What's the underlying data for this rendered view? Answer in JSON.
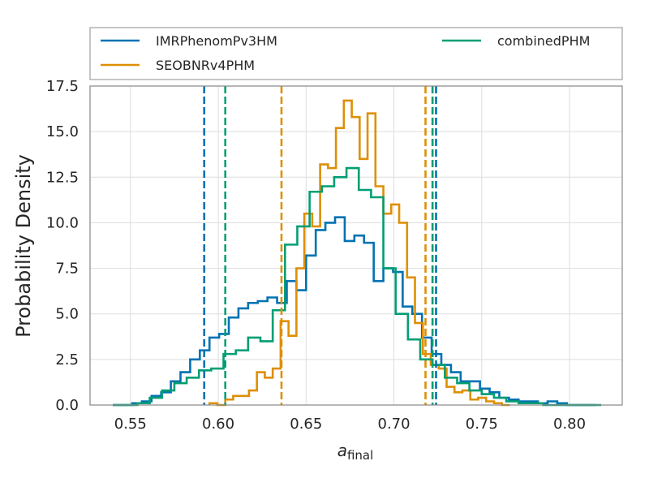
{
  "chart_data": {
    "type": "histogram",
    "xlabel": "a",
    "xlabel_subscript": "final",
    "ylabel": "Probability Density",
    "xlim": [
      0.527,
      0.83
    ],
    "ylim": [
      0,
      17.5
    ],
    "xticks": [
      0.55,
      0.6,
      0.65,
      0.7,
      0.75,
      0.8
    ],
    "xtick_labels": [
      "0.55",
      "0.60",
      "0.65",
      "0.70",
      "0.75",
      "0.80"
    ],
    "yticks": [
      0.0,
      2.5,
      5.0,
      7.5,
      10.0,
      12.5,
      15.0,
      17.5
    ],
    "ytick_labels": [
      "0.0",
      "2.5",
      "5.0",
      "7.5",
      "10.0",
      "12.5",
      "15.0",
      "17.5"
    ],
    "grid": true,
    "legend_position": "top, above plot",
    "series": [
      {
        "name": "IMRPhenomPv3HM",
        "color": "#0072b2",
        "bin_edges": [
          0.54,
          0.5455,
          0.551,
          0.5565,
          0.562,
          0.5675,
          0.573,
          0.5785,
          0.584,
          0.5895,
          0.595,
          0.6005,
          0.606,
          0.6115,
          0.617,
          0.6225,
          0.628,
          0.6335,
          0.639,
          0.6445,
          0.65,
          0.6555,
          0.661,
          0.6665,
          0.672,
          0.6775,
          0.683,
          0.6885,
          0.694,
          0.6995,
          0.705,
          0.7105,
          0.716,
          0.7215,
          0.727,
          0.7325,
          0.738,
          0.7435,
          0.749,
          0.7545,
          0.76,
          0.7655,
          0.771,
          0.7765,
          0.782,
          0.7875,
          0.793,
          0.7985,
          0.804,
          0.8095,
          0.815
        ],
        "values": [
          0.0,
          0.0,
          0.1,
          0.2,
          0.5,
          0.7,
          1.3,
          1.8,
          2.5,
          3.0,
          3.7,
          3.9,
          4.8,
          5.3,
          5.6,
          5.7,
          5.9,
          5.6,
          6.8,
          6.3,
          8.2,
          9.6,
          10.0,
          10.3,
          9.0,
          9.3,
          8.9,
          6.8,
          7.5,
          7.3,
          5.4,
          5.0,
          3.7,
          2.8,
          2.2,
          1.8,
          1.3,
          1.3,
          0.9,
          0.7,
          0.4,
          0.3,
          0.2,
          0.2,
          0.1,
          0.2,
          0.1,
          0.0,
          0.0,
          0.0
        ],
        "quantile_lines": [
          0.592,
          0.724
        ]
      },
      {
        "name": "SEOBNRv4PHM",
        "color": "#de8f05",
        "bin_edges": [
          0.595,
          0.5995,
          0.604,
          0.6085,
          0.613,
          0.6175,
          0.622,
          0.6265,
          0.631,
          0.6355,
          0.64,
          0.6445,
          0.649,
          0.6535,
          0.658,
          0.6625,
          0.667,
          0.6715,
          0.676,
          0.6805,
          0.685,
          0.6895,
          0.694,
          0.6985,
          0.703,
          0.7075,
          0.712,
          0.7165,
          0.721,
          0.7255,
          0.73,
          0.7345,
          0.739,
          0.7435,
          0.748,
          0.7525,
          0.757,
          0.7615,
          0.766
        ],
        "values": [
          0.1,
          0.0,
          0.3,
          0.5,
          0.5,
          0.8,
          1.8,
          1.5,
          2.0,
          4.6,
          3.8,
          7.5,
          10.5,
          9.8,
          13.2,
          13.0,
          15.2,
          16.7,
          15.8,
          13.5,
          16.0,
          12.0,
          10.5,
          11.0,
          10.0,
          7.0,
          4.5,
          2.8,
          2.2,
          2.0,
          1.0,
          0.7,
          0.8,
          0.3,
          0.4,
          0.2,
          0.1,
          0.0
        ],
        "quantile_lines": [
          0.636,
          0.718
        ]
      },
      {
        "name": "combinedPHM",
        "color": "#029e73",
        "bin_edges": [
          0.54,
          0.547,
          0.554,
          0.561,
          0.568,
          0.575,
          0.582,
          0.589,
          0.596,
          0.603,
          0.61,
          0.617,
          0.624,
          0.631,
          0.638,
          0.645,
          0.652,
          0.659,
          0.666,
          0.673,
          0.68,
          0.687,
          0.694,
          0.701,
          0.708,
          0.715,
          0.722,
          0.729,
          0.736,
          0.743,
          0.75,
          0.757,
          0.764,
          0.771,
          0.778,
          0.785,
          0.792,
          0.799,
          0.806,
          0.813,
          0.818
        ],
        "values": [
          0.0,
          0.0,
          0.1,
          0.4,
          0.8,
          1.2,
          1.5,
          1.9,
          2.0,
          2.8,
          3.0,
          3.7,
          3.5,
          5.2,
          8.8,
          9.8,
          11.7,
          12.0,
          12.5,
          13.0,
          11.8,
          11.4,
          7.5,
          5.0,
          3.6,
          2.5,
          2.2,
          1.5,
          1.2,
          0.8,
          0.6,
          0.4,
          0.2,
          0.1,
          0.1,
          0.0,
          0.0,
          0.0,
          0.0,
          0.0
        ],
        "quantile_lines": [
          0.604,
          0.722
        ]
      }
    ]
  }
}
